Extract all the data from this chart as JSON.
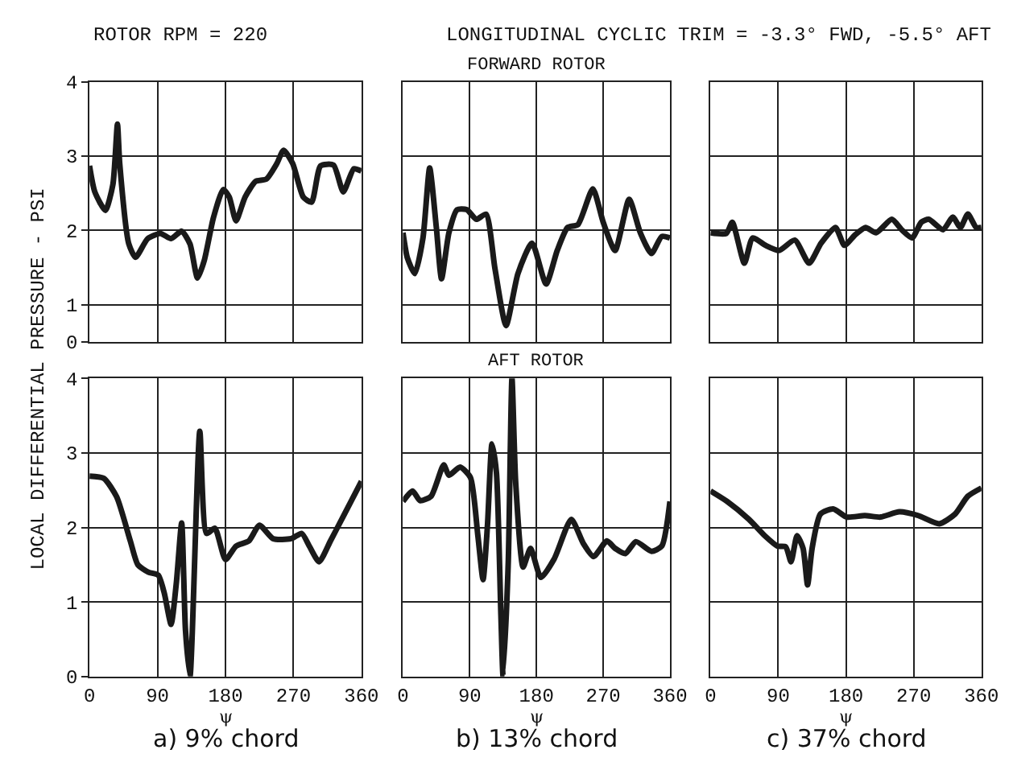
{
  "chart_data": [
    {
      "type": "line",
      "annotations": [
        "ROTOR RPM = 220"
      ],
      "ylabel": "LOCAL DIFFERENTIAL PRESSURE - PSI",
      "color": "#1a1a1a",
      "xlim": [
        0,
        360
      ],
      "xticks": [
        0,
        90,
        180,
        270,
        360
      ],
      "ylim": [
        0.5,
        4
      ],
      "yticks": [
        {
          "value": 0.5,
          "label": "0"
        },
        1,
        2,
        3,
        4
      ],
      "grid": true,
      "tick_labels": "y",
      "x": [
        0,
        7,
        21,
        31,
        37,
        40,
        52,
        61,
        77,
        94,
        108,
        122,
        133,
        143,
        152,
        164,
        177,
        185,
        194,
        206,
        220,
        234,
        248,
        257,
        269,
        283,
        294,
        306,
        323,
        336,
        350,
        360
      ],
      "values": [
        2.87,
        2.52,
        2.27,
        2.62,
        3.43,
        2.9,
        1.82,
        1.64,
        1.89,
        1.96,
        1.89,
        1.99,
        1.82,
        1.36,
        1.6,
        2.17,
        2.55,
        2.45,
        2.13,
        2.45,
        2.66,
        2.69,
        2.9,
        3.08,
        2.9,
        2.45,
        2.38,
        2.87,
        2.88,
        2.52,
        2.83,
        2.8
      ]
    },
    {
      "type": "line",
      "title": "FORWARD ROTOR",
      "annotations": [
        "LONGITUDINAL CYCLIC TRIM = -3.3° FWD, -5.5° AFT"
      ],
      "color": "#1a1a1a",
      "xlim": [
        0,
        360
      ],
      "xticks": [
        0,
        90,
        180,
        270,
        360
      ],
      "ylim": [
        0.5,
        4
      ],
      "yticks": [
        1,
        2,
        3,
        4
      ],
      "grid": true,
      "tick_labels": false,
      "x": [
        0,
        6,
        16,
        27,
        36,
        45,
        52,
        62,
        73,
        86,
        99,
        112,
        124,
        139,
        155,
        174,
        193,
        208,
        222,
        236,
        256,
        270,
        286,
        305,
        320,
        335,
        349,
        360
      ],
      "values": [
        1.97,
        1.63,
        1.42,
        1.9,
        2.84,
        2.04,
        1.35,
        1.97,
        2.28,
        2.28,
        2.15,
        2.22,
        1.49,
        0.72,
        1.42,
        1.83,
        1.28,
        1.73,
        2.04,
        2.08,
        2.56,
        2.11,
        1.73,
        2.42,
        1.97,
        1.69,
        1.92,
        1.9
      ]
    },
    {
      "type": "line",
      "color": "#1a1a1a",
      "xlim": [
        0,
        360
      ],
      "xticks": [
        0,
        90,
        180,
        270,
        360
      ],
      "ylim": [
        0.5,
        4
      ],
      "yticks": [
        1,
        2,
        3,
        4
      ],
      "grid": true,
      "tick_labels": false,
      "x": [
        0,
        21,
        29,
        45,
        56,
        73,
        91,
        112,
        131,
        147,
        166,
        178,
        192,
        206,
        220,
        241,
        254,
        268,
        280,
        290,
        309,
        322,
        332,
        342,
        353,
        360
      ],
      "values": [
        1.97,
        1.96,
        2.11,
        1.56,
        1.9,
        1.8,
        1.73,
        1.87,
        1.56,
        1.83,
        2.04,
        1.8,
        1.94,
        2.04,
        1.97,
        2.15,
        2.01,
        1.9,
        2.11,
        2.15,
        2.01,
        2.18,
        2.04,
        2.22,
        2.04,
        2.04
      ]
    },
    {
      "type": "line",
      "xlabel": "ψ",
      "annotations": [
        "a) 9% chord"
      ],
      "color": "#1a1a1a",
      "xlim": [
        0,
        360
      ],
      "xticks": [
        0,
        90,
        180,
        270,
        360
      ],
      "ylim": [
        0,
        4
      ],
      "yticks": [
        0,
        1,
        2,
        3,
        4
      ],
      "grid": true,
      "x": [
        0,
        19,
        36,
        54,
        64,
        78,
        91,
        99,
        108,
        115,
        122,
        127,
        133,
        146,
        155,
        166,
        180,
        194,
        211,
        225,
        243,
        267,
        281,
        291,
        304,
        319,
        337,
        360
      ],
      "values": [
        2.69,
        2.66,
        2.41,
        1.82,
        1.5,
        1.4,
        1.36,
        1.12,
        0.7,
        1.26,
        2.06,
        0.63,
        0,
        3.29,
        1.92,
        1.99,
        1.57,
        1.75,
        1.82,
        2.03,
        1.85,
        1.85,
        1.92,
        1.75,
        1.54,
        1.82,
        2.17,
        2.62
      ]
    },
    {
      "type": "line",
      "title": "AFT ROTOR",
      "xlabel": "ψ",
      "annotations": [
        "b) 13% chord"
      ],
      "color": "#1a1a1a",
      "xlim": [
        0,
        360
      ],
      "xticks": [
        0,
        90,
        180,
        270,
        360
      ],
      "ylim": [
        0,
        4
      ],
      "yticks": [
        0,
        1,
        2,
        3,
        4
      ],
      "grid": true,
      "tick_labels": "x",
      "x": [
        0,
        13,
        23,
        38,
        55,
        62,
        77,
        91,
        101,
        108,
        114,
        120,
        126,
        132,
        135,
        142,
        147,
        152,
        162,
        172,
        186,
        204,
        227,
        243,
        257,
        275,
        286,
        300,
        314,
        335,
        349,
        360
      ],
      "values": [
        2.35,
        2.49,
        2.36,
        2.42,
        2.84,
        2.7,
        2.81,
        2.67,
        1.89,
        1.3,
        2.04,
        3.12,
        2.74,
        0.84,
        0,
        1.54,
        4,
        2.6,
        1.47,
        1.72,
        1.33,
        1.58,
        2.11,
        1.79,
        1.61,
        1.82,
        1.72,
        1.65,
        1.81,
        1.68,
        1.75,
        2.35
      ]
    },
    {
      "type": "line",
      "xlabel": "ψ",
      "annotations": [
        "c) 37% chord"
      ],
      "color": "#1a1a1a",
      "xlim": [
        0,
        360
      ],
      "xticks": [
        0,
        90,
        180,
        270,
        360
      ],
      "ylim": [
        0,
        4
      ],
      "yticks": [
        0,
        1,
        2,
        3,
        4
      ],
      "grid": true,
      "tick_labels": "x",
      "x": [
        0,
        22,
        51,
        72,
        89,
        100,
        107,
        115,
        123,
        129,
        135,
        146,
        163,
        181,
        205,
        226,
        251,
        276,
        304,
        325,
        342,
        360
      ],
      "values": [
        2.49,
        2.35,
        2.11,
        1.89,
        1.75,
        1.74,
        1.54,
        1.89,
        1.72,
        1.23,
        1.72,
        2.18,
        2.25,
        2.14,
        2.16,
        2.14,
        2.21,
        2.16,
        2.05,
        2.18,
        2.42,
        2.53
      ]
    }
  ]
}
